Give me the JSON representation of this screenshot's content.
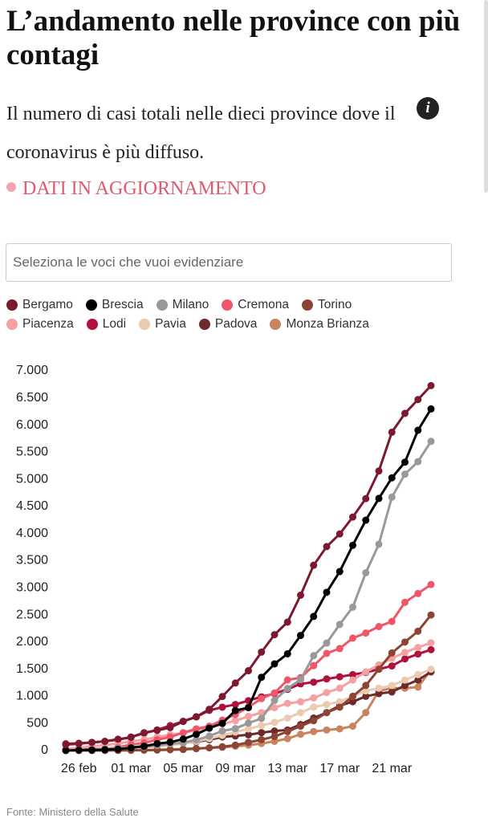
{
  "chart_data": {
    "type": "line",
    "title": "L’andamento nelle province con più contagi",
    "subtitle": "Il numero di casi totali nelle dieci province dove il coronavirus è più diffuso.",
    "status": "DATI IN AGGIORNAMENTO",
    "search_placeholder": "Seleziona le voci che vuoi evidenziare",
    "source": "Fonte: Ministero della Salute",
    "categories": [
      null,
      "26 feb",
      null,
      null,
      null,
      "01 mar",
      null,
      null,
      null,
      "05 mar",
      null,
      null,
      null,
      "09 mar",
      null,
      null,
      null,
      "13 mar",
      null,
      null,
      null,
      "17 mar",
      null,
      null,
      null,
      "21 mar",
      null,
      null,
      null
    ],
    "ylim": [
      0,
      7000
    ],
    "yticks": [
      0,
      {
        "value": 500,
        "label": "500"
      },
      {
        "value": 1000,
        "label": "1.000"
      },
      {
        "value": 1500,
        "label": "1.500"
      },
      {
        "value": 2000,
        "label": "2.000"
      },
      {
        "value": 2500,
        "label": "2.500"
      },
      {
        "value": 3000,
        "label": "3.000"
      },
      {
        "value": 3500,
        "label": "3.500"
      },
      {
        "value": 4000,
        "label": "4.000"
      },
      {
        "value": 4500,
        "label": "4.500"
      },
      {
        "value": 5000,
        "label": "5.000"
      },
      {
        "value": 5500,
        "label": "5.500"
      },
      {
        "value": 6000,
        "label": "6.000"
      },
      {
        "value": 6500,
        "label": "6.500"
      },
      {
        "value": 7000,
        "label": "7.000"
      }
    ],
    "series": [
      {
        "name": "Bergamo",
        "color": "#7b1a2f",
        "values": [
          110,
          125,
          150,
          170,
          209,
          243,
          330,
          372,
          423,
          537,
          623,
          761,
          997,
          1245,
          1472,
          1815,
          2136,
          2368,
          2864,
          3416,
          3760,
          3993,
          4305,
          4645,
          5154,
          5869,
          6216,
          6471,
          6728
        ]
      },
      {
        "name": "Brescia",
        "color": "#000000",
        "values": [
          2,
          8,
          10,
          16,
          25,
          50,
          80,
          127,
          155,
          212,
          300,
          413,
          501,
          739,
          790,
          1351,
          1598,
          1784,
          2122,
          2473,
          2918,
          3300,
          3784,
          4247,
          4648,
          5028,
          5317,
          5905,
          6298
        ]
      },
      {
        "name": "Milano",
        "color": "#999999",
        "values": [
          0,
          8,
          15,
          30,
          46,
          58,
          71,
          93,
          127,
          145,
          197,
          267,
          361,
          406,
          506,
          592,
          925,
          1146,
          1307,
          1750,
          1983,
          2326,
          2644,
          3278,
          3804,
          4672,
          5096,
          5326,
          5701
        ]
      },
      {
        "name": "Cremona",
        "color": "#f0566a",
        "values": [
          0,
          6,
          15,
          30,
          60,
          110,
          140,
          200,
          250,
          330,
          400,
          450,
          560,
          665,
          800,
          958,
          1061,
          1302,
          1344,
          1565,
          1792,
          1881,
          2073,
          2167,
          2286,
          2380,
          2733,
          2895,
          3061
        ]
      },
      {
        "name": "Torino",
        "color": "#8c4435",
        "values": [
          0,
          1,
          1,
          2,
          3,
          4,
          8,
          10,
          15,
          20,
          35,
          50,
          70,
          100,
          150,
          200,
          260,
          350,
          450,
          550,
          700,
          800,
          1000,
          1200,
          1500,
          1800,
          2000,
          2200,
          2500
        ]
      },
      {
        "name": "Piacenza",
        "color": "#f5a1a1",
        "values": [
          30,
          50,
          80,
          100,
          130,
          170,
          200,
          250,
          290,
          320,
          380,
          430,
          490,
          550,
          630,
          700,
          790,
          870,
          900,
          970,
          1070,
          1150,
          1300,
          1450,
          1580,
          1700,
          1810,
          1900,
          1987
        ]
      },
      {
        "name": "Lodi",
        "color": "#b0113e",
        "values": [
          125,
          135,
          150,
          170,
          200,
          250,
          320,
          380,
          460,
          540,
          620,
          740,
          800,
          850,
          920,
          990,
          1050,
          1130,
          1230,
          1260,
          1320,
          1360,
          1400,
          1440,
          1500,
          1560,
          1690,
          1780,
          1860
        ]
      },
      {
        "name": "Pavia",
        "color": "#e8cbb0",
        "values": [
          5,
          10,
          15,
          20,
          30,
          40,
          60,
          80,
          100,
          130,
          170,
          220,
          280,
          340,
          400,
          460,
          520,
          600,
          700,
          800,
          850,
          900,
          1000,
          1100,
          1150,
          1200,
          1300,
          1400,
          1500
        ]
      },
      {
        "name": "Padova",
        "color": "#6e2a2a",
        "values": [
          15,
          20,
          25,
          30,
          40,
          60,
          80,
          100,
          120,
          140,
          160,
          200,
          250,
          270,
          290,
          330,
          360,
          380,
          480,
          600,
          700,
          830,
          900,
          1000,
          1050,
          1080,
          1200,
          1300,
          1450
        ]
      },
      {
        "name": "Monza Brianza",
        "color": "#c8845c",
        "values": [
          0,
          1,
          2,
          3,
          5,
          8,
          10,
          15,
          20,
          30,
          40,
          50,
          60,
          80,
          100,
          130,
          170,
          220,
          300,
          350,
          380,
          400,
          450,
          700,
          1100,
          1150,
          1150,
          1170,
          1490
        ]
      }
    ]
  }
}
